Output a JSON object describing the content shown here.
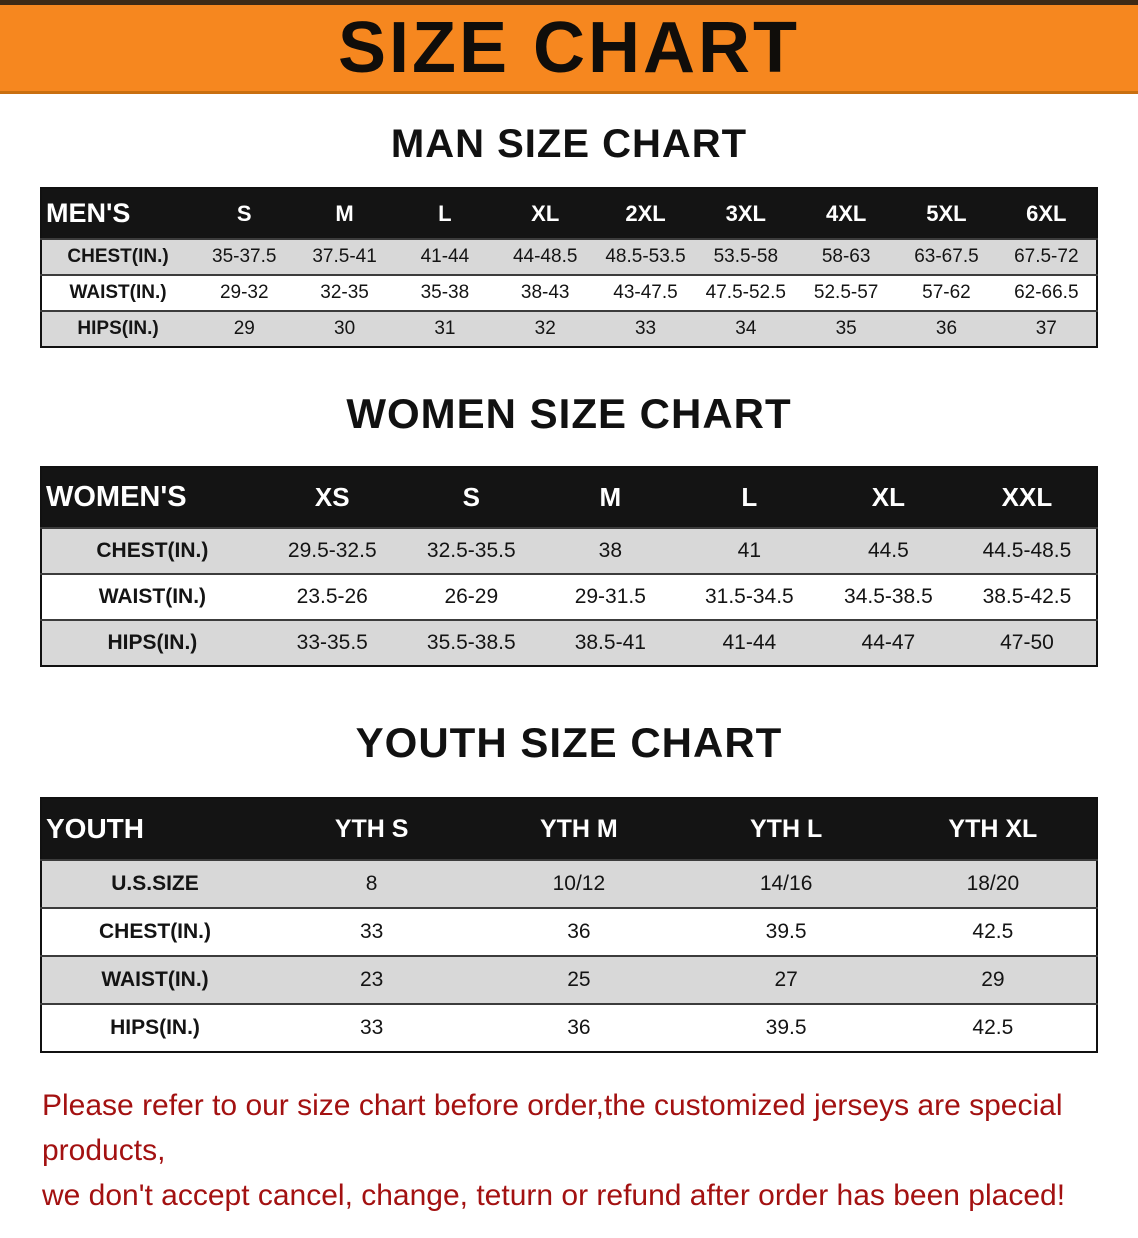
{
  "banner": {
    "title": "SIZE CHART"
  },
  "sections": [
    {
      "heading": "MAN SIZE CHART",
      "table": {
        "label": "MEN'S",
        "columns": [
          "S",
          "M",
          "L",
          "XL",
          "2XL",
          "3XL",
          "4XL",
          "5XL",
          "6XL"
        ],
        "rows": [
          {
            "label": "CHEST(IN.)",
            "values": [
              "35-37.5",
              "37.5-41",
              "41-44",
              "44-48.5",
              "48.5-53.5",
              "53.5-58",
              "58-63",
              "63-67.5",
              "67.5-72"
            ]
          },
          {
            "label": "WAIST(IN.)",
            "values": [
              "29-32",
              "32-35",
              "35-38",
              "38-43",
              "43-47.5",
              "47.5-52.5",
              "52.5-57",
              "57-62",
              "62-66.5"
            ]
          },
          {
            "label": "HIPS(IN.)",
            "values": [
              "29",
              "30",
              "31",
              "32",
              "33",
              "34",
              "35",
              "36",
              "37"
            ]
          }
        ]
      }
    },
    {
      "heading": "WOMEN SIZE CHART",
      "table": {
        "label": "WOMEN'S",
        "columns": [
          "XS",
          "S",
          "M",
          "L",
          "XL",
          "XXL"
        ],
        "rows": [
          {
            "label": "CHEST(IN.)",
            "values": [
              "29.5-32.5",
              "32.5-35.5",
              "38",
              "41",
              "44.5",
              "44.5-48.5"
            ]
          },
          {
            "label": "WAIST(IN.)",
            "values": [
              "23.5-26",
              "26-29",
              "29-31.5",
              "31.5-34.5",
              "34.5-38.5",
              "38.5-42.5"
            ]
          },
          {
            "label": "HIPS(IN.)",
            "values": [
              "33-35.5",
              "35.5-38.5",
              "38.5-41",
              "41-44",
              "44-47",
              "47-50"
            ]
          }
        ]
      }
    },
    {
      "heading": "YOUTH SIZE CHART",
      "table": {
        "label": "YOUTH",
        "columns": [
          "YTH S",
          "YTH M",
          "YTH L",
          "YTH XL"
        ],
        "rows": [
          {
            "label": "U.S.SIZE",
            "values": [
              "8",
              "10/12",
              "14/16",
              "18/20"
            ]
          },
          {
            "label": "CHEST(IN.)",
            "values": [
              "33",
              "36",
              "39.5",
              "42.5"
            ]
          },
          {
            "label": "WAIST(IN.)",
            "values": [
              "23",
              "25",
              "27",
              "29"
            ]
          },
          {
            "label": "HIPS(IN.)",
            "values": [
              "33",
              "36",
              "39.5",
              "42.5"
            ]
          }
        ]
      }
    }
  ],
  "footer": {
    "line1": "Please refer to our size chart before order,the customized jerseys are special products,",
    "line2": "we don't accept cancel, change, teturn or refund after order has been placed!"
  },
  "colors": {
    "accent_orange": "#f6871f",
    "table_header_bg": "#141414",
    "row_shade": "#d8d8d8",
    "notice_red": "#a31111"
  }
}
